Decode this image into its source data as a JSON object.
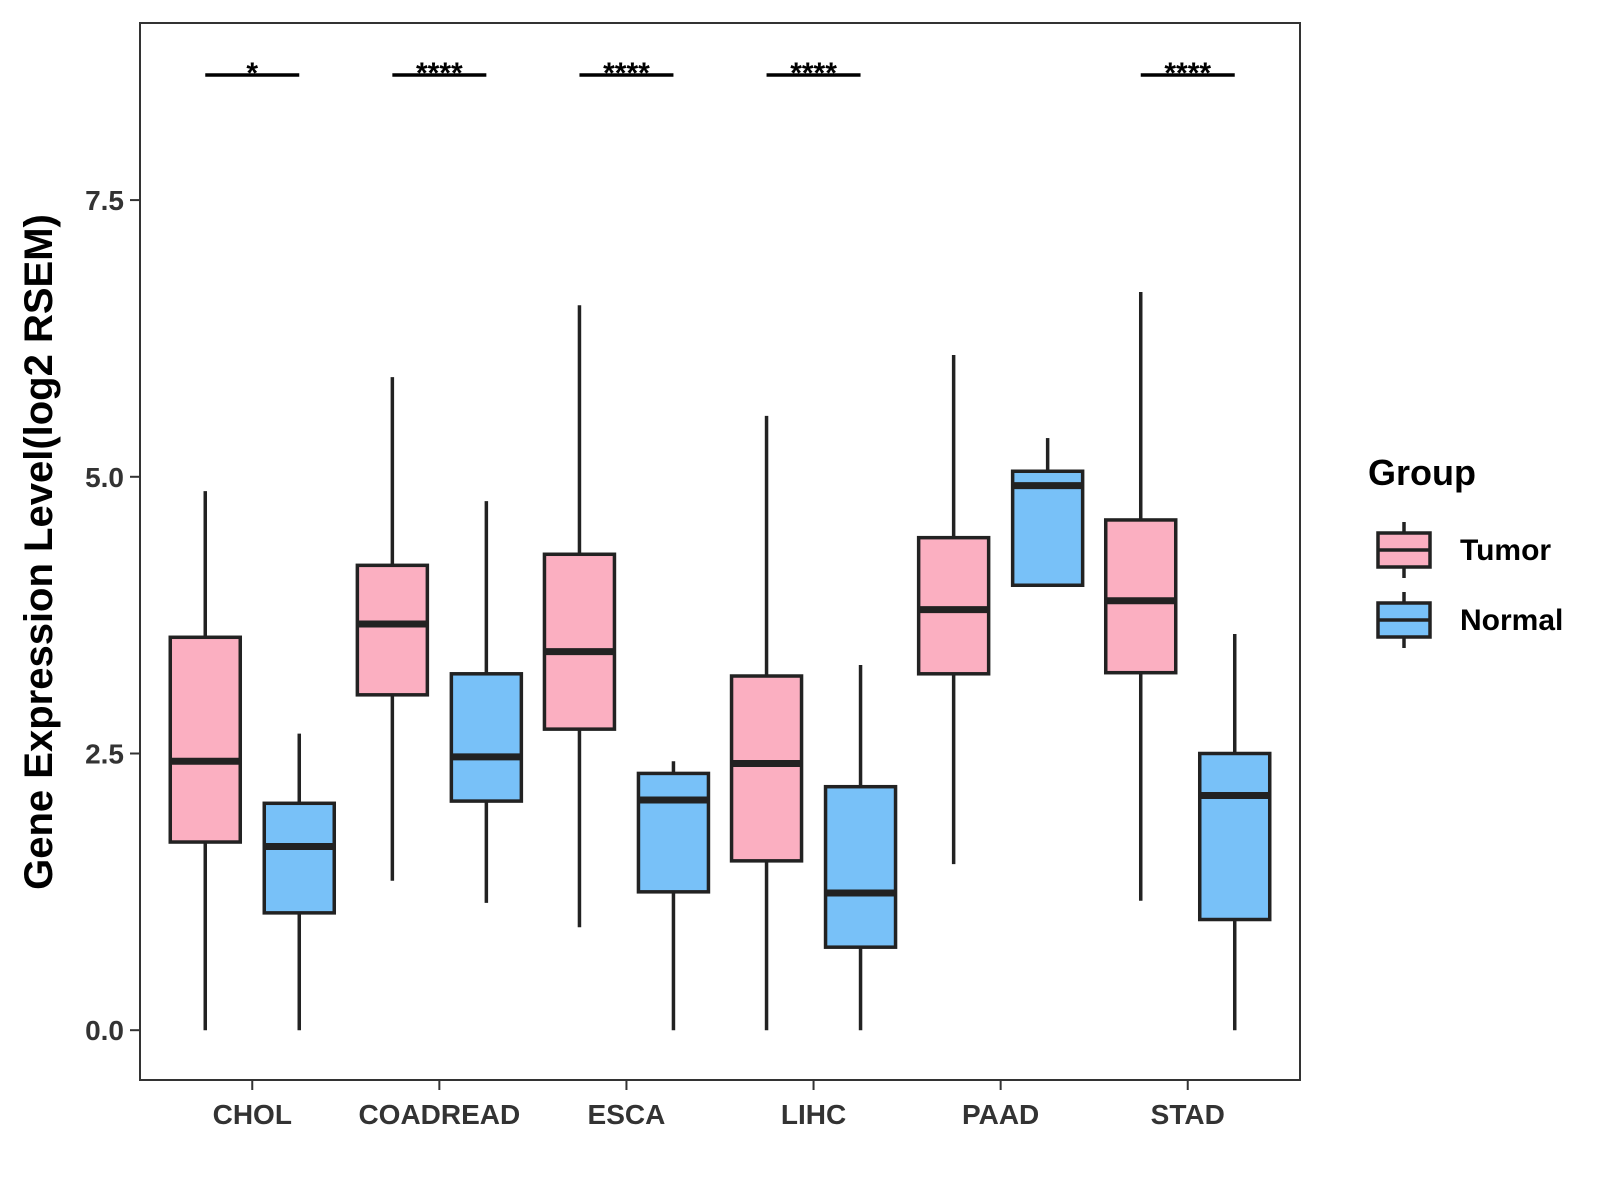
{
  "chart_data": {
    "type": "boxplot",
    "ylabel": "Gene Expression Level(log2 RSEM)",
    "xlabel": "",
    "ylim": [
      -0.45,
      9.1
    ],
    "yticks": [
      {
        "value": 0,
        "label": "0.0"
      },
      {
        "value": 2.5,
        "label": "2.5"
      },
      {
        "value": 5,
        "label": "5.0"
      },
      {
        "value": 7.5,
        "label": "7.5"
      }
    ],
    "categories": [
      "CHOL",
      "COADREAD",
      "ESCA",
      "LIHC",
      "PAAD",
      "STAD"
    ],
    "legend": {
      "title": "Group",
      "position": "right",
      "entries": [
        {
          "name": "Tumor",
          "color": "#FBAFC1"
        },
        {
          "name": "Normal",
          "color": "#78C1F8"
        }
      ]
    },
    "series": [
      {
        "name": "Tumor",
        "color": "#FBAFC1",
        "boxes": [
          {
            "min": 0.0,
            "q1": 1.7,
            "median": 2.43,
            "q3": 3.55,
            "max": 4.87
          },
          {
            "min": 1.35,
            "q1": 3.03,
            "median": 3.67,
            "q3": 4.2,
            "max": 5.9
          },
          {
            "min": 0.93,
            "q1": 2.72,
            "median": 3.42,
            "q3": 4.3,
            "max": 6.55
          },
          {
            "min": 0.0,
            "q1": 1.53,
            "median": 2.41,
            "q3": 3.2,
            "max": 5.55
          },
          {
            "min": 1.5,
            "q1": 3.22,
            "median": 3.8,
            "q3": 4.45,
            "max": 6.1
          },
          {
            "min": 1.17,
            "q1": 3.23,
            "median": 3.88,
            "q3": 4.61,
            "max": 6.67
          }
        ]
      },
      {
        "name": "Normal",
        "color": "#78C1F8",
        "boxes": [
          {
            "min": 0.0,
            "q1": 1.06,
            "median": 1.66,
            "q3": 2.05,
            "max": 2.68
          },
          {
            "min": 1.15,
            "q1": 2.07,
            "median": 2.47,
            "q3": 3.22,
            "max": 4.78
          },
          {
            "min": 0.0,
            "q1": 1.25,
            "median": 2.08,
            "q3": 2.32,
            "max": 2.43
          },
          {
            "min": 0.0,
            "q1": 0.75,
            "median": 1.24,
            "q3": 2.2,
            "max": 3.3
          },
          {
            "min": 4.02,
            "q1": 4.02,
            "median": 4.92,
            "q3": 5.05,
            "max": 5.35
          },
          {
            "min": 0.0,
            "q1": 1.0,
            "median": 2.12,
            "q3": 2.5,
            "max": 3.58
          }
        ]
      }
    ],
    "significance": [
      {
        "category": "CHOL",
        "label": "*"
      },
      {
        "category": "COADREAD",
        "label": "****"
      },
      {
        "category": "ESCA",
        "label": "****"
      },
      {
        "category": "LIHC",
        "label": "****"
      },
      {
        "category": "PAAD",
        "label": ""
      },
      {
        "category": "STAD",
        "label": "****"
      }
    ]
  }
}
